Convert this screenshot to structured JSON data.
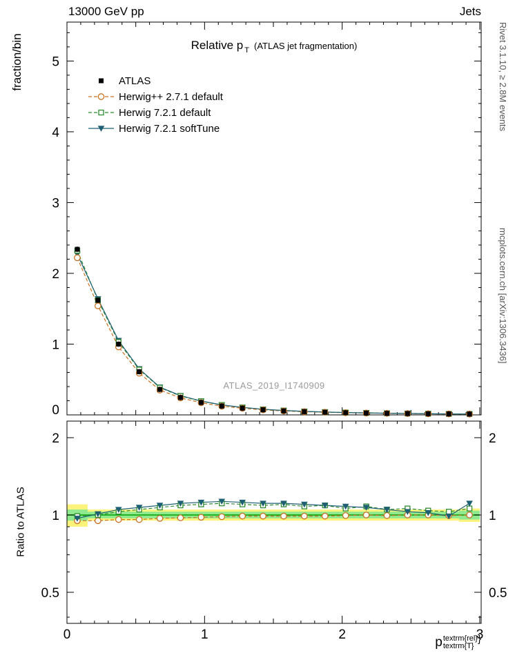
{
  "header": {
    "left": "13000 GeV pp",
    "right": "Jets"
  },
  "title": {
    "main": "Relative p",
    "sub": "T",
    "paren": "(ATLAS jet fragmentation)"
  },
  "watermark": "ATLAS_2019_I1740909",
  "side_notes": {
    "top": "Rivet 3.1.10, ≥ 2.8M events",
    "bottom": "mcplots.cern.ch [arXiv:1306.3436]"
  },
  "axes": {
    "ylabel_main": "fraction/bin",
    "ylabel_ratio": "Ratio to ATLAS",
    "xlabel": {
      "base": "p",
      "sub": "textrm{T}",
      "sup": "textrm{rel}",
      "trail": "}"
    },
    "xtick_labels": [
      "0",
      "1",
      "2",
      "3"
    ],
    "ytick_labels_main": [
      "0",
      "1",
      "2",
      "3",
      "4",
      "5"
    ],
    "ytick_labels_ratio": [
      "0.5",
      "1",
      "2"
    ]
  },
  "legend": [
    {
      "label": "ATLAS",
      "marker": "square-filled",
      "color": "#000000",
      "line": "none"
    },
    {
      "label": "Herwig++ 2.7.1 default",
      "marker": "circle-open",
      "color": "#c87122",
      "line": "dashed"
    },
    {
      "label": "Herwig 7.2.1 default",
      "marker": "square-open",
      "color": "#2e8b2e",
      "line": "dashed"
    },
    {
      "label": "Herwig 7.2.1 softTune",
      "marker": "triangle-down-filled",
      "color": "#1f5f74",
      "line": "solid"
    }
  ],
  "chart_data": {
    "type": "line",
    "title": "Relative p_T (ATLAS jet fragmentation)",
    "xlabel": "p_T^rel",
    "ylabel": "fraction/bin",
    "xlim": [
      0,
      3.01
    ],
    "x": [
      0.075,
      0.225,
      0.375,
      0.525,
      0.675,
      0.825,
      0.975,
      1.125,
      1.275,
      1.425,
      1.575,
      1.725,
      1.875,
      2.025,
      2.175,
      2.325,
      2.475,
      2.625,
      2.775,
      2.925
    ],
    "main": {
      "ylim": [
        0,
        5.55
      ],
      "yticks": [
        0,
        1,
        2,
        3,
        4,
        5
      ],
      "series": [
        {
          "name": "ATLAS",
          "values": [
            2.34,
            1.62,
            1.0,
            0.61,
            0.36,
            0.245,
            0.175,
            0.125,
            0.095,
            0.072,
            0.056,
            0.045,
            0.037,
            0.031,
            0.026,
            0.022,
            0.019,
            0.016,
            0.014,
            0.012
          ]
        },
        {
          "name": "Herwig++ 2.7.1 default",
          "values": [
            2.22,
            1.54,
            0.96,
            0.59,
            0.35,
            0.24,
            0.172,
            0.123,
            0.094,
            0.071,
            0.055,
            0.045,
            0.037,
            0.031,
            0.026,
            0.022,
            0.019,
            0.016,
            0.014,
            0.012
          ]
        },
        {
          "name": "Herwig 7.2.1 default",
          "values": [
            2.32,
            1.62,
            1.03,
            0.64,
            0.385,
            0.267,
            0.193,
            0.139,
            0.105,
            0.078,
            0.062,
            0.049,
            0.04,
            0.033,
            0.028,
            0.023,
            0.02,
            0.017,
            0.014,
            0.013
          ]
        },
        {
          "name": "Herwig 7.2.1 softTune",
          "values": [
            2.27,
            1.64,
            1.05,
            0.65,
            0.392,
            0.272,
            0.196,
            0.141,
            0.106,
            0.08,
            0.062,
            0.05,
            0.04,
            0.033,
            0.028,
            0.023,
            0.02,
            0.016,
            0.014,
            0.013
          ]
        }
      ]
    },
    "ratio": {
      "scale": "log",
      "ylim": [
        0.38,
        2.32
      ],
      "yticks": [
        0.5,
        1,
        2
      ],
      "series": [
        {
          "name": "Herwig++ 2.7.1 default",
          "values": [
            0.95,
            0.95,
            0.96,
            0.96,
            0.97,
            0.975,
            0.98,
            0.985,
            0.99,
            0.99,
            0.99,
            0.99,
            0.99,
            0.995,
            1.0,
            0.995,
            1.0,
            1.0,
            0.995,
            1.0
          ]
        },
        {
          "name": "Herwig 7.2.1 default",
          "values": [
            0.99,
            1.0,
            1.03,
            1.05,
            1.07,
            1.09,
            1.1,
            1.11,
            1.1,
            1.09,
            1.1,
            1.08,
            1.09,
            1.06,
            1.08,
            1.05,
            1.06,
            1.04,
            1.03,
            1.06
          ]
        },
        {
          "name": "Herwig 7.2.1 softTune",
          "values": [
            0.97,
            1.01,
            1.05,
            1.07,
            1.09,
            1.11,
            1.12,
            1.13,
            1.12,
            1.11,
            1.11,
            1.1,
            1.09,
            1.08,
            1.07,
            1.05,
            1.03,
            1.02,
            0.99,
            1.11
          ]
        }
      ],
      "bands": {
        "yellow": {
          "color": "#fbf37c",
          "hi": [
            1.1,
            1.05,
            1.05,
            1.05,
            1.05,
            1.05,
            1.05,
            1.05,
            1.05,
            1.05,
            1.05,
            1.05,
            1.05,
            1.05,
            1.05,
            1.05,
            1.05,
            1.05,
            1.05,
            1.06
          ],
          "lo": [
            0.9,
            0.95,
            0.95,
            0.95,
            0.95,
            0.95,
            0.95,
            0.95,
            0.95,
            0.95,
            0.95,
            0.95,
            0.95,
            0.95,
            0.95,
            0.95,
            0.95,
            0.95,
            0.95,
            0.94
          ]
        },
        "green": {
          "color": "#8fe98f",
          "hi": [
            1.05,
            1.03,
            1.03,
            1.03,
            1.03,
            1.03,
            1.03,
            1.03,
            1.03,
            1.03,
            1.03,
            1.03,
            1.03,
            1.03,
            1.03,
            1.03,
            1.03,
            1.03,
            1.03,
            1.04
          ],
          "lo": [
            0.95,
            0.97,
            0.97,
            0.97,
            0.97,
            0.97,
            0.97,
            0.97,
            0.97,
            0.97,
            0.97,
            0.97,
            0.97,
            0.97,
            0.97,
            0.97,
            0.97,
            0.97,
            0.97,
            0.96
          ]
        },
        "centerline_color": "#00a000"
      }
    }
  }
}
